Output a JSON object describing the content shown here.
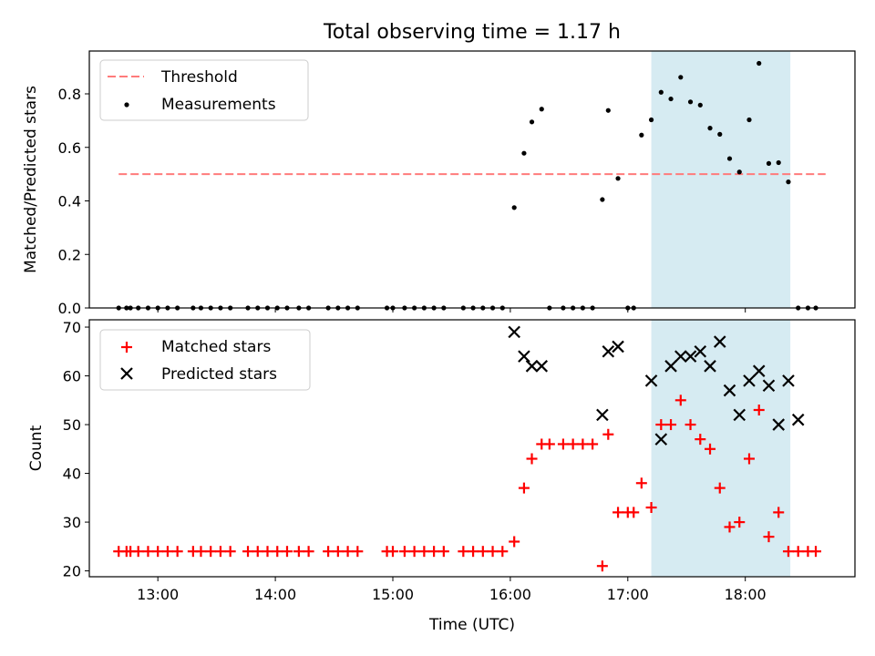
{
  "chart_data": [
    {
      "type": "scatter",
      "title": "Total observing time = 1.17 h",
      "xlabel": "",
      "ylabel": "Matched/Predicted stars",
      "xlim": [
        "12:25",
        "18:56"
      ],
      "ylim": [
        0,
        0.96
      ],
      "yticks": [
        "0.0",
        "0.2",
        "0.4",
        "0.6",
        "0.8"
      ],
      "xticks": [
        "13:00",
        "14:00",
        "15:00",
        "16:00",
        "17:00",
        "18:00"
      ],
      "xtick_labels_shown": false,
      "shaded_region": {
        "start": "17:12",
        "end": "18:23",
        "color": "#add8e6"
      },
      "legend": {
        "placement": "upper left",
        "entries": [
          "Threshold",
          "Measurements"
        ]
      },
      "threshold": {
        "name": "Threshold",
        "value": 0.5,
        "x_start": "12:40",
        "x_end": "18:41",
        "style": "dashed",
        "color": "#ff7b7b"
      },
      "series": [
        {
          "name": "Measurements",
          "color": "#000000",
          "marker": "dot",
          "x": [
            "12:40",
            "12:44",
            "12:46",
            "12:50",
            "12:55",
            "13:00",
            "13:05",
            "13:10",
            "13:18",
            "13:22",
            "13:27",
            "13:32",
            "13:37",
            "13:46",
            "13:51",
            "13:56",
            "14:01",
            "14:06",
            "14:12",
            "14:17",
            "14:27",
            "14:32",
            "14:37",
            "14:42",
            "14:57",
            "15:00",
            "15:06",
            "15:11",
            "15:16",
            "15:21",
            "15:26",
            "15:36",
            "15:41",
            "15:46",
            "15:51",
            "15:56",
            "16:02",
            "16:07",
            "16:11",
            "16:16",
            "16:20",
            "16:27",
            "16:32",
            "16:37",
            "16:42",
            "16:47",
            "16:50",
            "16:55",
            "17:00",
            "17:03",
            "17:07",
            "17:12",
            "17:17",
            "17:22",
            "17:27",
            "17:32",
            "17:37",
            "17:42",
            "17:47",
            "17:52",
            "17:57",
            "18:02",
            "18:07",
            "18:12",
            "18:17",
            "18:22",
            "18:27",
            "18:32",
            "18:36"
          ],
          "y": [
            0,
            0,
            0,
            0,
            0,
            0,
            0,
            0,
            0,
            0,
            0,
            0,
            0,
            0,
            0,
            0,
            0,
            0,
            0,
            0,
            0,
            0,
            0,
            0,
            0,
            0,
            0,
            0,
            0,
            0,
            0,
            0,
            0,
            0,
            0,
            0,
            0.375,
            0.578,
            0.695,
            0.743,
            0,
            0,
            0,
            0,
            0,
            0.405,
            0.738,
            0.484,
            0,
            0,
            0.646,
            0.703,
            0.806,
            0.781,
            0.862,
            0.77,
            0.758,
            0.672,
            0.649,
            0.558,
            0.508,
            0.703,
            0.914,
            0.54,
            0.543,
            0.471,
            0,
            0,
            0
          ],
          "y_display": [
            0,
            0,
            0,
            0,
            0,
            0,
            0,
            0,
            0,
            0,
            0,
            0,
            0,
            0,
            0,
            0,
            0,
            0,
            0,
            0,
            0,
            0,
            0,
            0,
            0,
            0,
            0,
            0,
            0,
            0,
            0,
            0,
            0,
            0,
            0,
            0,
            0.375,
            0.578,
            0.695,
            0.743,
            0,
            0,
            0,
            0,
            0,
            0.405,
            0.738,
            0.484,
            0,
            0,
            0.646,
            0.703,
            0.806,
            0.781,
            0.862,
            0.77,
            0.758,
            0.672,
            0.649,
            0.558,
            0.508,
            0.703,
            0.914,
            0.54,
            0.543,
            0.471,
            0,
            0,
            0
          ]
        }
      ]
    },
    {
      "type": "scatter",
      "title": "",
      "xlabel": "Time (UTC)",
      "ylabel": "Count",
      "xlim": [
        "12:25",
        "18:56"
      ],
      "ylim": [
        18.8,
        71.5
      ],
      "yticks": [
        "20",
        "30",
        "40",
        "50",
        "60",
        "70"
      ],
      "xticks": [
        "13:00",
        "14:00",
        "15:00",
        "16:00",
        "17:00",
        "18:00"
      ],
      "shaded_region": {
        "start": "17:12",
        "end": "18:23",
        "color": "#add8e6"
      },
      "legend": {
        "placement": "upper left",
        "entries": [
          "Matched stars",
          "Predicted stars"
        ]
      },
      "series": [
        {
          "name": "Matched stars",
          "color": "#ff0000",
          "marker": "plus",
          "x": [
            "12:40",
            "12:44",
            "12:46",
            "12:50",
            "12:55",
            "13:00",
            "13:05",
            "13:10",
            "13:18",
            "13:22",
            "13:27",
            "13:32",
            "13:37",
            "13:46",
            "13:51",
            "13:56",
            "14:01",
            "14:06",
            "14:12",
            "14:17",
            "14:27",
            "14:32",
            "14:37",
            "14:42",
            "14:57",
            "15:00",
            "15:06",
            "15:11",
            "15:16",
            "15:21",
            "15:26",
            "15:36",
            "15:41",
            "15:46",
            "15:51",
            "15:56",
            "16:02",
            "16:07",
            "16:11",
            "16:16",
            "16:20",
            "16:27",
            "16:32",
            "16:37",
            "16:42",
            "16:47",
            "16:50",
            "16:55",
            "17:00",
            "17:03",
            "17:07",
            "17:12",
            "17:17",
            "17:22",
            "17:27",
            "17:32",
            "17:37",
            "17:42",
            "17:47",
            "17:52",
            "17:57",
            "18:02",
            "18:07",
            "18:12",
            "18:17",
            "18:22",
            "18:27",
            "18:32",
            "18:36"
          ],
          "y": [
            24,
            24,
            24,
            24,
            24,
            24,
            24,
            24,
            24,
            24,
            24,
            24,
            24,
            24,
            24,
            24,
            24,
            24,
            24,
            24,
            24,
            24,
            24,
            24,
            24,
            24,
            24,
            24,
            24,
            24,
            24,
            24,
            24,
            24,
            24,
            24,
            26,
            37,
            43,
            46,
            46,
            46,
            46,
            46,
            46,
            21,
            48,
            32,
            32,
            32,
            38,
            33,
            50,
            50,
            55,
            50,
            47,
            45,
            37,
            29,
            30,
            43,
            53,
            27,
            32,
            24,
            24,
            24,
            24
          ]
        },
        {
          "name": "Predicted stars",
          "color": "#000000",
          "marker": "x",
          "x": [
            "16:02",
            "16:07",
            "16:11",
            "16:16",
            "16:47",
            "16:50",
            "16:55",
            "17:12",
            "17:17",
            "17:22",
            "17:27",
            "17:32",
            "17:37",
            "17:42",
            "17:47",
            "17:52",
            "17:57",
            "18:02",
            "18:07",
            "18:12",
            "18:17",
            "18:22",
            "18:27"
          ],
          "y": [
            69,
            64,
            62,
            62,
            52,
            65,
            66,
            59,
            47,
            62,
            64,
            64,
            65,
            62,
            67,
            57,
            52,
            59,
            61,
            58,
            50,
            59,
            51
          ]
        }
      ]
    }
  ]
}
